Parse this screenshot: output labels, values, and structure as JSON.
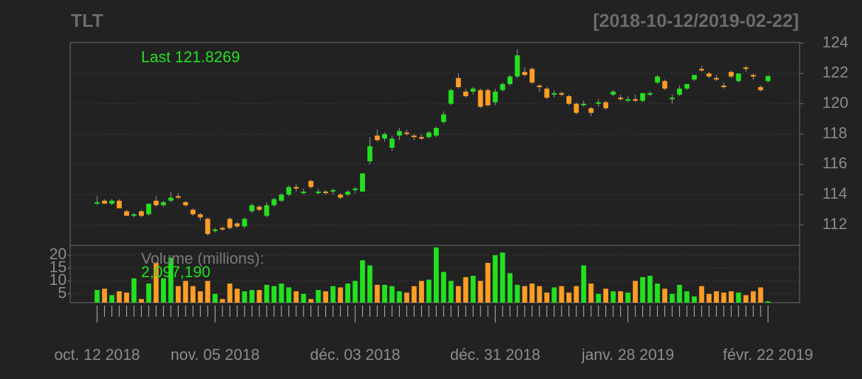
{
  "chart_data": {
    "type": "candlestick",
    "title": "TLT",
    "subtitle": "[2018-10-12/2019-02-22]",
    "last_label": "Last 121.8269",
    "volume_label": "Volume (millions):",
    "volume_last_label": "2,097,190",
    "up_color": "#22e11f",
    "down_color": "#ff9d25",
    "grid": true,
    "categories": [
      "oct. 12 2018",
      null,
      null,
      null,
      null,
      null,
      null,
      null,
      null,
      null,
      null,
      null,
      null,
      null,
      null,
      null,
      "nov. 05 2018",
      null,
      null,
      null,
      null,
      null,
      null,
      null,
      null,
      null,
      null,
      null,
      null,
      null,
      null,
      null,
      null,
      null,
      null,
      "déc. 03 2018",
      null,
      null,
      null,
      null,
      null,
      null,
      null,
      null,
      null,
      null,
      null,
      null,
      null,
      null,
      null,
      null,
      null,
      null,
      "déc. 31 2018",
      null,
      null,
      null,
      null,
      null,
      null,
      null,
      null,
      null,
      null,
      null,
      null,
      null,
      null,
      null,
      null,
      null,
      "janv. 28 2019",
      null,
      null,
      null,
      null,
      null,
      null,
      null,
      null,
      null,
      null,
      null,
      null,
      null,
      null,
      null,
      null,
      null,
      null,
      "févr. 22 2019"
    ],
    "ohlc": [
      [
        113.4,
        113.9,
        113.3,
        113.5
      ],
      [
        113.6,
        113.7,
        113.4,
        113.4
      ],
      [
        113.4,
        113.7,
        113.3,
        113.6
      ],
      [
        113.6,
        113.7,
        113.1,
        113.1
      ],
      [
        112.9,
        113.0,
        112.6,
        112.6
      ],
      [
        112.6,
        112.8,
        112.5,
        112.7
      ],
      [
        112.9,
        113.0,
        112.5,
        112.6
      ],
      [
        112.7,
        113.4,
        112.6,
        113.4
      ],
      [
        113.6,
        113.9,
        113.2,
        113.3
      ],
      [
        113.3,
        113.6,
        113.2,
        113.5
      ],
      [
        113.6,
        114.2,
        113.5,
        113.8
      ],
      [
        113.9,
        114.1,
        113.7,
        113.8
      ],
      [
        113.5,
        113.6,
        113.2,
        113.3
      ],
      [
        113.0,
        113.1,
        112.6,
        112.7
      ],
      [
        112.7,
        112.8,
        112.3,
        112.5
      ],
      [
        112.4,
        112.5,
        111.3,
        111.4
      ],
      [
        111.6,
        111.8,
        111.5,
        111.7
      ],
      [
        111.8,
        111.9,
        111.6,
        111.7
      ],
      [
        112.4,
        112.5,
        111.7,
        111.8
      ],
      [
        112.1,
        112.2,
        111.8,
        111.9
      ],
      [
        111.9,
        112.5,
        111.8,
        112.4
      ],
      [
        112.9,
        113.4,
        112.8,
        113.3
      ],
      [
        113.2,
        113.3,
        112.9,
        113.0
      ],
      [
        112.6,
        113.5,
        112.5,
        113.3
      ],
      [
        113.3,
        113.8,
        113.2,
        113.7
      ],
      [
        113.6,
        114.1,
        113.5,
        114.0
      ],
      [
        114.0,
        114.6,
        113.9,
        114.5
      ],
      [
        114.5,
        114.7,
        114.2,
        114.4
      ],
      [
        114.1,
        114.4,
        114.0,
        114.2
      ],
      [
        114.9,
        115.0,
        114.4,
        114.5
      ],
      [
        114.1,
        114.4,
        114.0,
        114.2
      ],
      [
        114.2,
        114.3,
        114.0,
        114.1
      ],
      [
        114.2,
        114.4,
        114.0,
        114.3
      ],
      [
        114.0,
        114.1,
        113.7,
        113.8
      ],
      [
        114.0,
        114.3,
        113.9,
        114.2
      ],
      [
        114.3,
        114.5,
        114.1,
        114.4
      ],
      [
        114.2,
        115.4,
        114.2,
        115.4
      ],
      [
        116.2,
        117.8,
        116.0,
        117.2
      ],
      [
        117.9,
        118.3,
        117.5,
        117.6
      ],
      [
        117.7,
        118.1,
        117.5,
        118.0
      ],
      [
        117.1,
        117.9,
        116.9,
        117.7
      ],
      [
        117.9,
        118.4,
        117.6,
        118.2
      ],
      [
        118.1,
        118.3,
        117.9,
        118.0
      ],
      [
        117.9,
        118.0,
        117.6,
        117.8
      ],
      [
        117.8,
        118.0,
        117.6,
        117.7
      ],
      [
        117.8,
        118.2,
        117.7,
        118.1
      ],
      [
        117.9,
        118.5,
        117.8,
        118.4
      ],
      [
        118.8,
        119.5,
        118.7,
        119.3
      ],
      [
        120.0,
        121.0,
        119.9,
        120.9
      ],
      [
        121.7,
        122.0,
        121.0,
        121.1
      ],
      [
        120.8,
        121.0,
        120.4,
        120.5
      ],
      [
        120.8,
        121.1,
        120.6,
        121.0
      ],
      [
        120.9,
        121.0,
        119.7,
        119.8
      ],
      [
        120.9,
        121.0,
        119.8,
        119.9
      ],
      [
        120.1,
        121.0,
        119.9,
        120.8
      ],
      [
        120.9,
        121.4,
        120.8,
        121.3
      ],
      [
        121.3,
        121.9,
        121.2,
        121.8
      ],
      [
        121.8,
        123.6,
        121.7,
        123.2
      ],
      [
        122.1,
        122.4,
        121.8,
        121.9
      ],
      [
        122.3,
        122.4,
        121.3,
        121.4
      ],
      [
        121.2,
        121.3,
        120.8,
        121.1
      ],
      [
        121.0,
        121.1,
        120.3,
        120.4
      ],
      [
        120.6,
        120.9,
        120.4,
        120.7
      ],
      [
        120.7,
        120.8,
        120.5,
        120.6
      ],
      [
        120.5,
        120.6,
        119.9,
        120.0
      ],
      [
        120.0,
        120.1,
        119.3,
        119.4
      ],
      [
        119.9,
        120.2,
        119.8,
        120.0
      ],
      [
        119.7,
        119.8,
        119.2,
        119.4
      ],
      [
        120.0,
        120.3,
        119.8,
        120.1
      ],
      [
        120.1,
        120.2,
        119.6,
        119.7
      ],
      [
        120.6,
        120.9,
        120.5,
        120.8
      ],
      [
        120.4,
        120.6,
        120.2,
        120.3
      ],
      [
        120.2,
        120.5,
        120.1,
        120.3
      ],
      [
        120.3,
        120.6,
        120.1,
        120.2
      ],
      [
        120.2,
        120.7,
        120.1,
        120.7
      ],
      [
        120.6,
        120.8,
        120.5,
        120.7
      ],
      [
        121.4,
        121.9,
        121.3,
        121.8
      ],
      [
        121.5,
        121.6,
        120.9,
        121.0
      ],
      [
        120.3,
        120.6,
        120.0,
        120.4
      ],
      [
        120.6,
        121.2,
        120.5,
        121.0
      ],
      [
        121.0,
        121.3,
        120.9,
        121.3
      ],
      [
        121.6,
        121.9,
        121.5,
        121.9
      ],
      [
        122.3,
        122.5,
        122.1,
        122.2
      ],
      [
        122.0,
        122.1,
        121.7,
        121.8
      ],
      [
        121.7,
        121.9,
        121.5,
        121.6
      ],
      [
        121.2,
        121.4,
        121.0,
        121.1
      ],
      [
        122.1,
        122.2,
        121.7,
        121.8
      ],
      [
        121.5,
        122.0,
        121.4,
        122.0
      ],
      [
        122.4,
        122.5,
        122.1,
        122.3
      ],
      [
        121.9,
        122.0,
        121.6,
        121.8
      ],
      [
        121.1,
        121.2,
        120.8,
        120.9
      ],
      [
        121.5,
        121.9,
        121.4,
        121.8269
      ]
    ],
    "volume": [
      6.5,
      7,
      4.5,
      6,
      5.5,
      11,
      3,
      9,
      17,
      11,
      19,
      8,
      10,
      8,
      6,
      10,
      5,
      3,
      9,
      7,
      6,
      6.5,
      6.5,
      8.5,
      8,
      9,
      7.5,
      6,
      5,
      3,
      6.5,
      6,
      8,
      7.5,
      9,
      10,
      18,
      16,
      8.5,
      8.5,
      8,
      6,
      5.5,
      8,
      10,
      10.5,
      23,
      13.5,
      10,
      8,
      11.5,
      12,
      10,
      17,
      20,
      21,
      13,
      8.5,
      8,
      9,
      8,
      5.5,
      7.5,
      8,
      5.5,
      8,
      16,
      9,
      5,
      7,
      6,
      6,
      5.5,
      10,
      11.5,
      12,
      9,
      7,
      5,
      8.5,
      6,
      4,
      8,
      5,
      6,
      5.5,
      6,
      5.5,
      4.5,
      6,
      7.5,
      2.09719
    ],
    "ylim": [
      110.65,
      124.05
    ],
    "yticks": [
      112,
      114,
      116,
      118,
      120,
      122,
      124
    ],
    "y2lim": [
      1.6,
      23.8
    ],
    "y2ticks": [
      5,
      10,
      15,
      20
    ]
  }
}
